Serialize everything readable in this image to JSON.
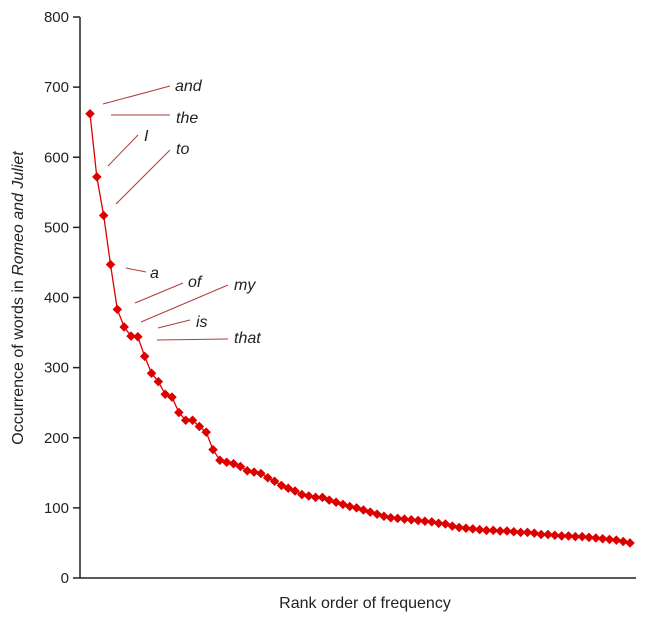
{
  "chart_data": {
    "type": "line",
    "xlabel": "Rank order of frequency",
    "ylabel_prefix": "Occurrence of words in ",
    "ylabel_italic": "Romeo and Juliet",
    "ylim": [
      0,
      800
    ],
    "yticks": [
      "0",
      "100",
      "200",
      "300",
      "400",
      "500",
      "600",
      "700",
      "800"
    ],
    "grid": false,
    "legend": "none",
    "series_color": "#dd0000",
    "leader_color": "#b33a3a",
    "x": [
      1,
      2,
      3,
      4,
      5,
      6,
      7,
      8,
      9,
      10,
      11,
      12,
      13,
      14,
      15,
      16,
      17,
      18,
      19,
      20,
      21,
      22,
      23,
      24,
      25,
      26,
      27,
      28,
      29,
      30,
      31,
      32,
      33,
      34,
      35,
      36,
      37,
      38,
      39,
      40,
      41,
      42,
      43,
      44,
      45,
      46,
      47,
      48,
      49,
      50,
      51,
      52,
      53,
      54,
      55,
      56,
      57,
      58,
      59,
      60,
      61,
      62,
      63,
      64,
      65,
      66,
      67,
      68,
      69,
      70,
      71,
      72,
      73,
      74,
      75,
      76,
      77,
      78,
      79,
      80
    ],
    "y": [
      662,
      572,
      517,
      447,
      383,
      358,
      345,
      344,
      316,
      292,
      280,
      262,
      258,
      236,
      225,
      225,
      216,
      208,
      183,
      168,
      165,
      163,
      159,
      153,
      151,
      149,
      143,
      138,
      132,
      128,
      124,
      119,
      117,
      115,
      115,
      111,
      108,
      105,
      102,
      100,
      97,
      94,
      91,
      88,
      86,
      85,
      84,
      83,
      82,
      81,
      80,
      78,
      77,
      74,
      72,
      71,
      70,
      69,
      68,
      68,
      67,
      67,
      66,
      65,
      65,
      64,
      62,
      62,
      61,
      60,
      60,
      59,
      59,
      58,
      57,
      56,
      55,
      54,
      52,
      50
    ],
    "annotations": [
      {
        "word": "and",
        "rank": 1
      },
      {
        "word": "the",
        "rank": 2
      },
      {
        "word": "I",
        "rank": 3
      },
      {
        "word": "to",
        "rank": 4
      },
      {
        "word": "a",
        "rank": 5
      },
      {
        "word": "of",
        "rank": 6
      },
      {
        "word": "my",
        "rank": 7
      },
      {
        "word": "is",
        "rank": 8
      },
      {
        "word": "that",
        "rank": 9
      }
    ]
  }
}
